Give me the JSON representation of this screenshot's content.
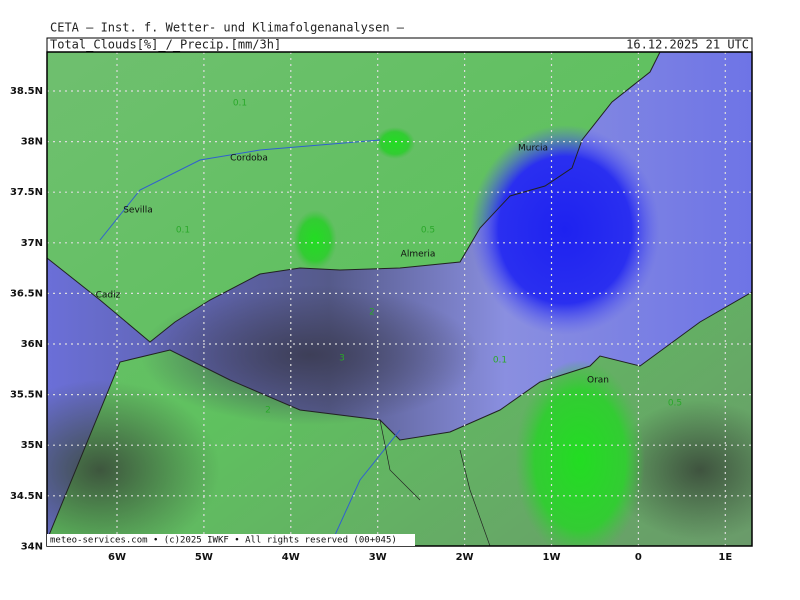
{
  "header": {
    "title": "CETA — Inst. f. Wetter- und Klimafolgenanalysen —",
    "subtitle": "Total_Clouds[%]_/_Precip.[mm/3h]",
    "date": "16.12.2025 21 UTC"
  },
  "map": {
    "lat_labels": [
      "38.5N",
      "38N",
      "37.5N",
      "37N",
      "36.5N",
      "36N",
      "35.5N",
      "35N",
      "34.5N",
      "34N"
    ],
    "lon_labels": [
      "6W",
      "5W",
      "4W",
      "3W",
      "2W",
      "1W",
      "0",
      "1E"
    ],
    "places": [
      "Cordoba",
      "Sevilla",
      "Murcia",
      "Almeria",
      "Cadiz",
      "Oran"
    ],
    "contour_labels": [
      "0.1",
      "0.1",
      "0.5",
      "2",
      "3",
      "2",
      "0.1",
      "0.5"
    ]
  },
  "footer": "meteo-services.com • (c)2025 IWKF • All rights reserved (00+045)"
}
